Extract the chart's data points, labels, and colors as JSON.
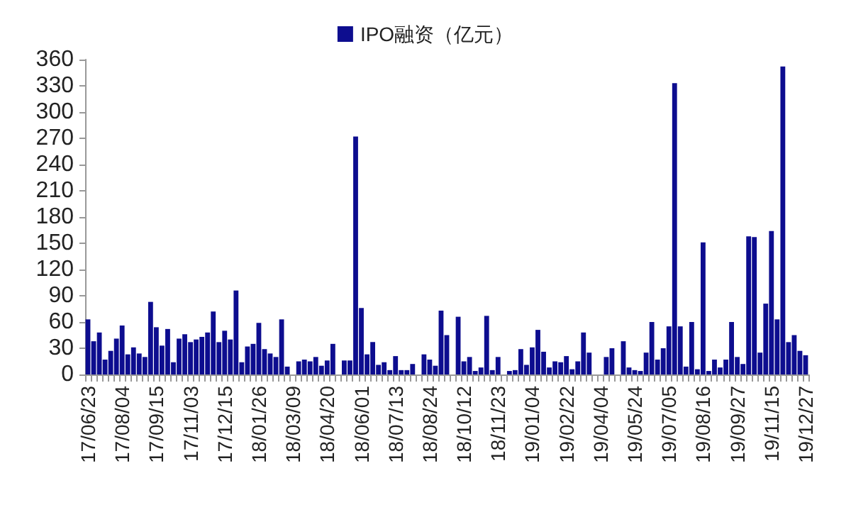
{
  "chart_data": {
    "type": "bar",
    "categories": [
      "17/06/23",
      null,
      null,
      null,
      null,
      null,
      "17/08/04",
      null,
      null,
      null,
      null,
      null,
      "17/09/15",
      null,
      null,
      null,
      null,
      null,
      "17/11/03",
      null,
      null,
      null,
      null,
      null,
      "17/12/15",
      null,
      null,
      null,
      null,
      null,
      "18/01/26",
      null,
      null,
      null,
      null,
      null,
      "18/03/09",
      null,
      null,
      null,
      null,
      null,
      "18/04/20",
      null,
      null,
      null,
      null,
      null,
      "18/06/01",
      null,
      null,
      null,
      null,
      null,
      "18/07/13",
      null,
      null,
      null,
      null,
      null,
      "18/08/24",
      null,
      null,
      null,
      null,
      null,
      "18/10/12",
      null,
      null,
      null,
      null,
      null,
      "18/11/23",
      null,
      null,
      null,
      null,
      null,
      "19/01/04",
      null,
      null,
      null,
      null,
      null,
      "19/02/22",
      null,
      null,
      null,
      null,
      null,
      "19/04/04",
      null,
      null,
      null,
      null,
      null,
      "19/05/24",
      null,
      null,
      null,
      null,
      null,
      "19/07/05",
      null,
      null,
      null,
      null,
      null,
      "19/08/16",
      null,
      null,
      null,
      null,
      null,
      "19/09/27",
      null,
      null,
      null,
      null,
      null,
      "19/11/15",
      null,
      null,
      null,
      null,
      null,
      "19/12/27"
    ],
    "series": [
      {
        "name": "IPO融资（亿元）",
        "color": "#0d0d8f",
        "values": [
          63,
          38,
          48,
          17,
          27,
          41,
          56,
          23,
          31,
          24,
          20,
          83,
          54,
          33,
          52,
          14,
          41,
          46,
          37,
          40,
          43,
          48,
          72,
          37,
          50,
          40,
          96,
          14,
          32,
          35,
          59,
          29,
          24,
          20,
          63,
          9,
          0,
          15,
          17,
          15,
          20,
          10,
          16,
          35,
          0,
          16,
          16,
          272,
          76,
          23,
          37,
          11,
          14,
          5,
          21,
          5,
          5,
          12,
          0,
          23,
          17,
          10,
          73,
          45,
          0,
          66,
          15,
          20,
          4,
          8,
          67,
          5,
          20,
          0,
          4,
          5,
          29,
          11,
          31,
          51,
          26,
          8,
          15,
          14,
          21,
          6,
          15,
          48,
          25,
          0,
          0,
          20,
          30,
          0,
          38,
          8,
          5,
          4,
          25,
          60,
          17,
          30,
          55,
          333,
          55,
          9,
          60,
          6,
          151,
          4,
          17,
          8,
          17,
          60,
          20,
          12,
          158,
          157,
          25,
          81,
          164,
          63,
          352,
          37,
          45,
          27,
          22
        ]
      }
    ],
    "ylim": [
      0,
      360
    ],
    "yticks": [
      0,
      30,
      60,
      90,
      120,
      150,
      180,
      210,
      240,
      270,
      300,
      330,
      360
    ],
    "grid": false,
    "legend": "top"
  }
}
